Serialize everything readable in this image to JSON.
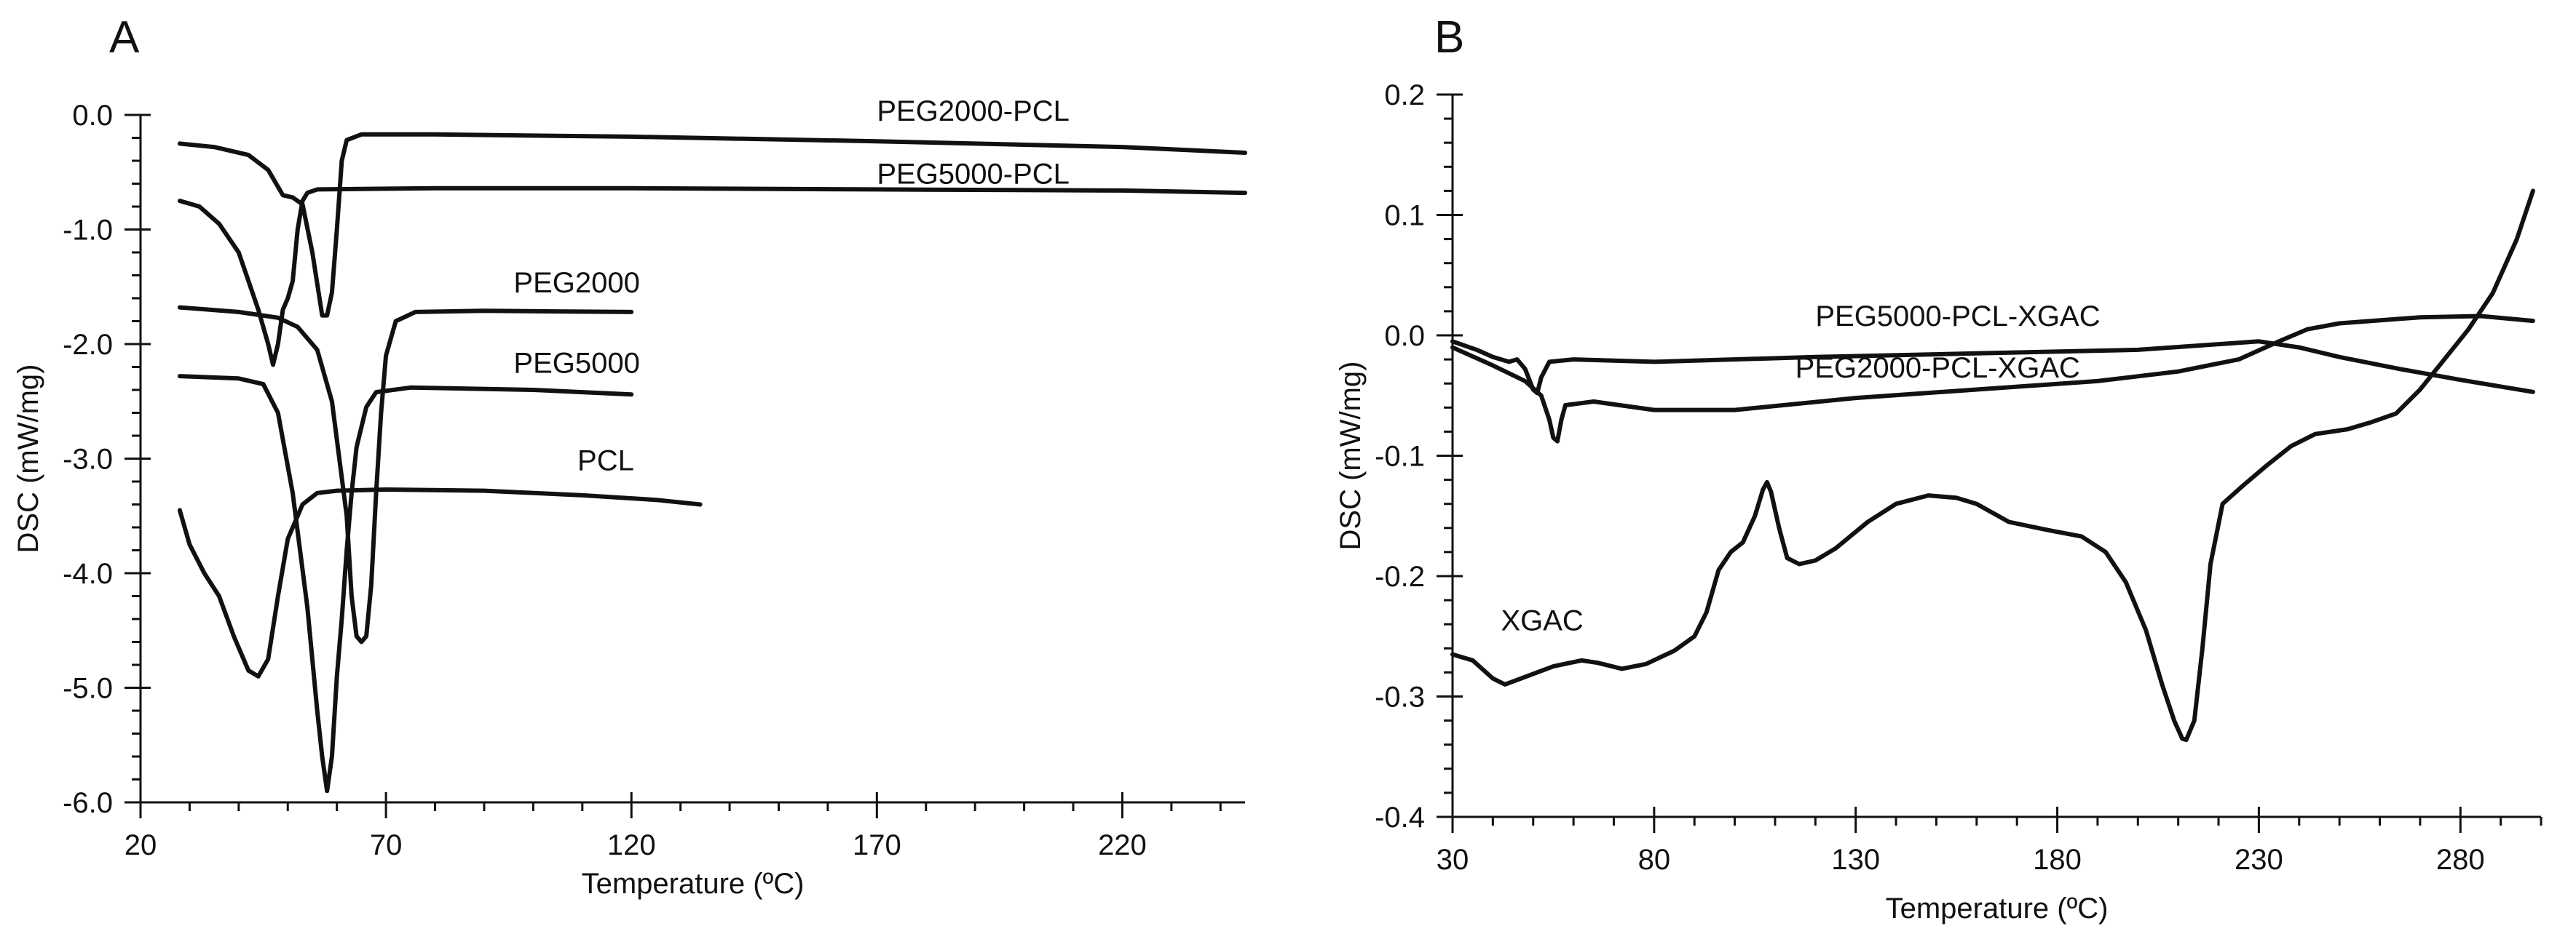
{
  "chart_data": [
    {
      "type": "line",
      "panel": "A",
      "title": "",
      "xlabel": "Temperature (ºC)",
      "ylabel": "DSC (mW/mg)",
      "xlim": [
        20,
        245
      ],
      "ylim": [
        -6.0,
        0.0
      ],
      "xticks": [
        20,
        70,
        120,
        170,
        220
      ],
      "yticks": [
        0.0,
        -1.0,
        -2.0,
        -3.0,
        -4.0,
        -5.0,
        -6.0
      ],
      "x_tick_labels": [
        "20",
        "70",
        "120",
        "170",
        "220"
      ],
      "y_tick_labels": [
        "0.0",
        "-1.0",
        "-2.0",
        "-3.0",
        "-4.0",
        "-5.0",
        "-6.0"
      ],
      "grid": false,
      "series": [
        {
          "name": "PEG2000-PCL",
          "label_at": [
            170,
            -0.05
          ],
          "points": [
            [
              28,
              -0.25
            ],
            [
              35,
              -0.28
            ],
            [
              42,
              -0.35
            ],
            [
              46,
              -0.48
            ],
            [
              49,
              -0.7
            ],
            [
              51,
              -0.72
            ],
            [
              53,
              -0.78
            ],
            [
              55,
              -1.2
            ],
            [
              57,
              -1.75
            ],
            [
              58,
              -1.75
            ],
            [
              59,
              -1.55
            ],
            [
              60,
              -1.0
            ],
            [
              61,
              -0.4
            ],
            [
              62,
              -0.22
            ],
            [
              65,
              -0.17
            ],
            [
              80,
              -0.17
            ],
            [
              120,
              -0.19
            ],
            [
              170,
              -0.23
            ],
            [
              220,
              -0.28
            ],
            [
              245,
              -0.33
            ]
          ]
        },
        {
          "name": "PEG5000-PCL",
          "label_at": [
            170,
            -0.6
          ],
          "points": [
            [
              28,
              -0.75
            ],
            [
              32,
              -0.8
            ],
            [
              36,
              -0.95
            ],
            [
              40,
              -1.2
            ],
            [
              44,
              -1.7
            ],
            [
              46,
              -2.0
            ],
            [
              47,
              -2.18
            ],
            [
              48,
              -2.0
            ],
            [
              49,
              -1.7
            ],
            [
              50,
              -1.6
            ],
            [
              51,
              -1.45
            ],
            [
              52,
              -1.0
            ],
            [
              53,
              -0.75
            ],
            [
              54,
              -0.68
            ],
            [
              56,
              -0.65
            ],
            [
              80,
              -0.64
            ],
            [
              120,
              -0.64
            ],
            [
              170,
              -0.65
            ],
            [
              220,
              -0.66
            ],
            [
              245,
              -0.68
            ]
          ]
        },
        {
          "name": "PEG2000",
          "label_at": [
            96,
            -1.55
          ],
          "points": [
            [
              28,
              -1.68
            ],
            [
              40,
              -1.72
            ],
            [
              48,
              -1.77
            ],
            [
              52,
              -1.85
            ],
            [
              56,
              -2.05
            ],
            [
              59,
              -2.5
            ],
            [
              62,
              -3.5
            ],
            [
              63,
              -4.2
            ],
            [
              64,
              -4.55
            ],
            [
              65,
              -4.6
            ],
            [
              66,
              -4.55
            ],
            [
              67,
              -4.1
            ],
            [
              68,
              -3.3
            ],
            [
              69,
              -2.6
            ],
            [
              70,
              -2.1
            ],
            [
              72,
              -1.8
            ],
            [
              76,
              -1.72
            ],
            [
              90,
              -1.71
            ],
            [
              120,
              -1.72
            ]
          ]
        },
        {
          "name": "PEG5000",
          "label_at": [
            96,
            -2.25
          ],
          "points": [
            [
              28,
              -2.28
            ],
            [
              40,
              -2.3
            ],
            [
              45,
              -2.35
            ],
            [
              48,
              -2.6
            ],
            [
              51,
              -3.3
            ],
            [
              54,
              -4.3
            ],
            [
              56,
              -5.2
            ],
            [
              57,
              -5.6
            ],
            [
              58,
              -5.9
            ],
            [
              59,
              -5.6
            ],
            [
              60,
              -4.9
            ],
            [
              61,
              -4.4
            ],
            [
              62,
              -3.8
            ],
            [
              63,
              -3.3
            ],
            [
              64,
              -2.9
            ],
            [
              66,
              -2.55
            ],
            [
              68,
              -2.42
            ],
            [
              75,
              -2.38
            ],
            [
              100,
              -2.4
            ],
            [
              120,
              -2.44
            ]
          ]
        },
        {
          "name": "PCL",
          "label_at": [
            109,
            -3.1
          ],
          "points": [
            [
              28,
              -3.45
            ],
            [
              30,
              -3.75
            ],
            [
              33,
              -4.0
            ],
            [
              36,
              -4.2
            ],
            [
              39,
              -4.55
            ],
            [
              42,
              -4.85
            ],
            [
              44,
              -4.9
            ],
            [
              46,
              -4.75
            ],
            [
              48,
              -4.2
            ],
            [
              50,
              -3.7
            ],
            [
              53,
              -3.4
            ],
            [
              56,
              -3.3
            ],
            [
              60,
              -3.28
            ],
            [
              70,
              -3.27
            ],
            [
              90,
              -3.28
            ],
            [
              110,
              -3.32
            ],
            [
              125,
              -3.36
            ],
            [
              134,
              -3.4
            ]
          ]
        }
      ]
    },
    {
      "type": "line",
      "panel": "B",
      "title": "",
      "xlabel": "Temperature (ºC)",
      "ylabel": "DSC (mW/mg)",
      "xlim": [
        30,
        300
      ],
      "ylim": [
        -0.4,
        0.2
      ],
      "xticks": [
        30,
        80,
        130,
        180,
        230,
        280
      ],
      "yticks": [
        0.2,
        0.1,
        0.0,
        -0.1,
        -0.2,
        -0.3,
        -0.4
      ],
      "x_tick_labels": [
        "30",
        "80",
        "130",
        "180",
        "230",
        "280"
      ],
      "y_tick_labels": [
        "0.2",
        "0.1",
        "0.0",
        "-0.1",
        "-0.2",
        "-0.3",
        "-0.4"
      ],
      "grid": false,
      "series": [
        {
          "name": "PEG5000-PCL-XGAC",
          "label_at": [
            120,
            0.008
          ],
          "points": [
            [
              30,
              -0.005
            ],
            [
              36,
              -0.012
            ],
            [
              40,
              -0.018
            ],
            [
              44,
              -0.022
            ],
            [
              46,
              -0.02
            ],
            [
              48,
              -0.028
            ],
            [
              50,
              -0.045
            ],
            [
              51,
              -0.048
            ],
            [
              52,
              -0.035
            ],
            [
              54,
              -0.022
            ],
            [
              60,
              -0.02
            ],
            [
              80,
              -0.022
            ],
            [
              120,
              -0.018
            ],
            [
              160,
              -0.015
            ],
            [
              200,
              -0.012
            ],
            [
              230,
              -0.005
            ],
            [
              240,
              -0.01
            ],
            [
              250,
              -0.018
            ],
            [
              265,
              -0.028
            ],
            [
              280,
              -0.037
            ],
            [
              298,
              -0.047
            ]
          ]
        },
        {
          "name": "PEG2000-PCL-XGAC",
          "label_at": [
            115,
            -0.035
          ],
          "points": [
            [
              30,
              -0.01
            ],
            [
              40,
              -0.025
            ],
            [
              48,
              -0.038
            ],
            [
              52,
              -0.05
            ],
            [
              54,
              -0.07
            ],
            [
              55,
              -0.085
            ],
            [
              56,
              -0.088
            ],
            [
              57,
              -0.07
            ],
            [
              58,
              -0.058
            ],
            [
              65,
              -0.055
            ],
            [
              80,
              -0.062
            ],
            [
              100,
              -0.062
            ],
            [
              130,
              -0.052
            ],
            [
              160,
              -0.045
            ],
            [
              190,
              -0.038
            ],
            [
              210,
              -0.03
            ],
            [
              225,
              -0.02
            ],
            [
              235,
              -0.005
            ],
            [
              242,
              0.005
            ],
            [
              250,
              0.01
            ],
            [
              270,
              0.015
            ],
            [
              285,
              0.016
            ],
            [
              298,
              0.012
            ]
          ]
        },
        {
          "name": "XGAC",
          "label_at": [
            42,
            -0.245
          ],
          "points": [
            [
              30,
              -0.265
            ],
            [
              35,
              -0.27
            ],
            [
              40,
              -0.285
            ],
            [
              43,
              -0.29
            ],
            [
              47,
              -0.285
            ],
            [
              55,
              -0.275
            ],
            [
              62,
              -0.27
            ],
            [
              66,
              -0.272
            ],
            [
              72,
              -0.277
            ],
            [
              78,
              -0.273
            ],
            [
              85,
              -0.262
            ],
            [
              90,
              -0.25
            ],
            [
              93,
              -0.23
            ],
            [
              96,
              -0.195
            ],
            [
              99,
              -0.18
            ],
            [
              102,
              -0.172
            ],
            [
              105,
              -0.15
            ],
            [
              107,
              -0.128
            ],
            [
              108,
              -0.122
            ],
            [
              109,
              -0.13
            ],
            [
              111,
              -0.16
            ],
            [
              113,
              -0.185
            ],
            [
              116,
              -0.19
            ],
            [
              120,
              -0.187
            ],
            [
              125,
              -0.177
            ],
            [
              133,
              -0.155
            ],
            [
              140,
              -0.14
            ],
            [
              148,
              -0.133
            ],
            [
              155,
              -0.135
            ],
            [
              160,
              -0.14
            ],
            [
              168,
              -0.155
            ],
            [
              178,
              -0.162
            ],
            [
              186,
              -0.167
            ],
            [
              192,
              -0.18
            ],
            [
              197,
              -0.205
            ],
            [
              202,
              -0.245
            ],
            [
              206,
              -0.29
            ],
            [
              209,
              -0.32
            ],
            [
              211,
              -0.335
            ],
            [
              212,
              -0.336
            ],
            [
              214,
              -0.32
            ],
            [
              216,
              -0.26
            ],
            [
              218,
              -0.19
            ],
            [
              221,
              -0.14
            ],
            [
              226,
              -0.125
            ],
            [
              232,
              -0.108
            ],
            [
              238,
              -0.092
            ],
            [
              244,
              -0.082
            ],
            [
              252,
              -0.078
            ],
            [
              258,
              -0.072
            ],
            [
              264,
              -0.065
            ],
            [
              270,
              -0.045
            ],
            [
              276,
              -0.02
            ],
            [
              282,
              0.005
            ],
            [
              288,
              0.035
            ],
            [
              294,
              0.08
            ],
            [
              298,
              0.12
            ]
          ]
        }
      ]
    }
  ]
}
